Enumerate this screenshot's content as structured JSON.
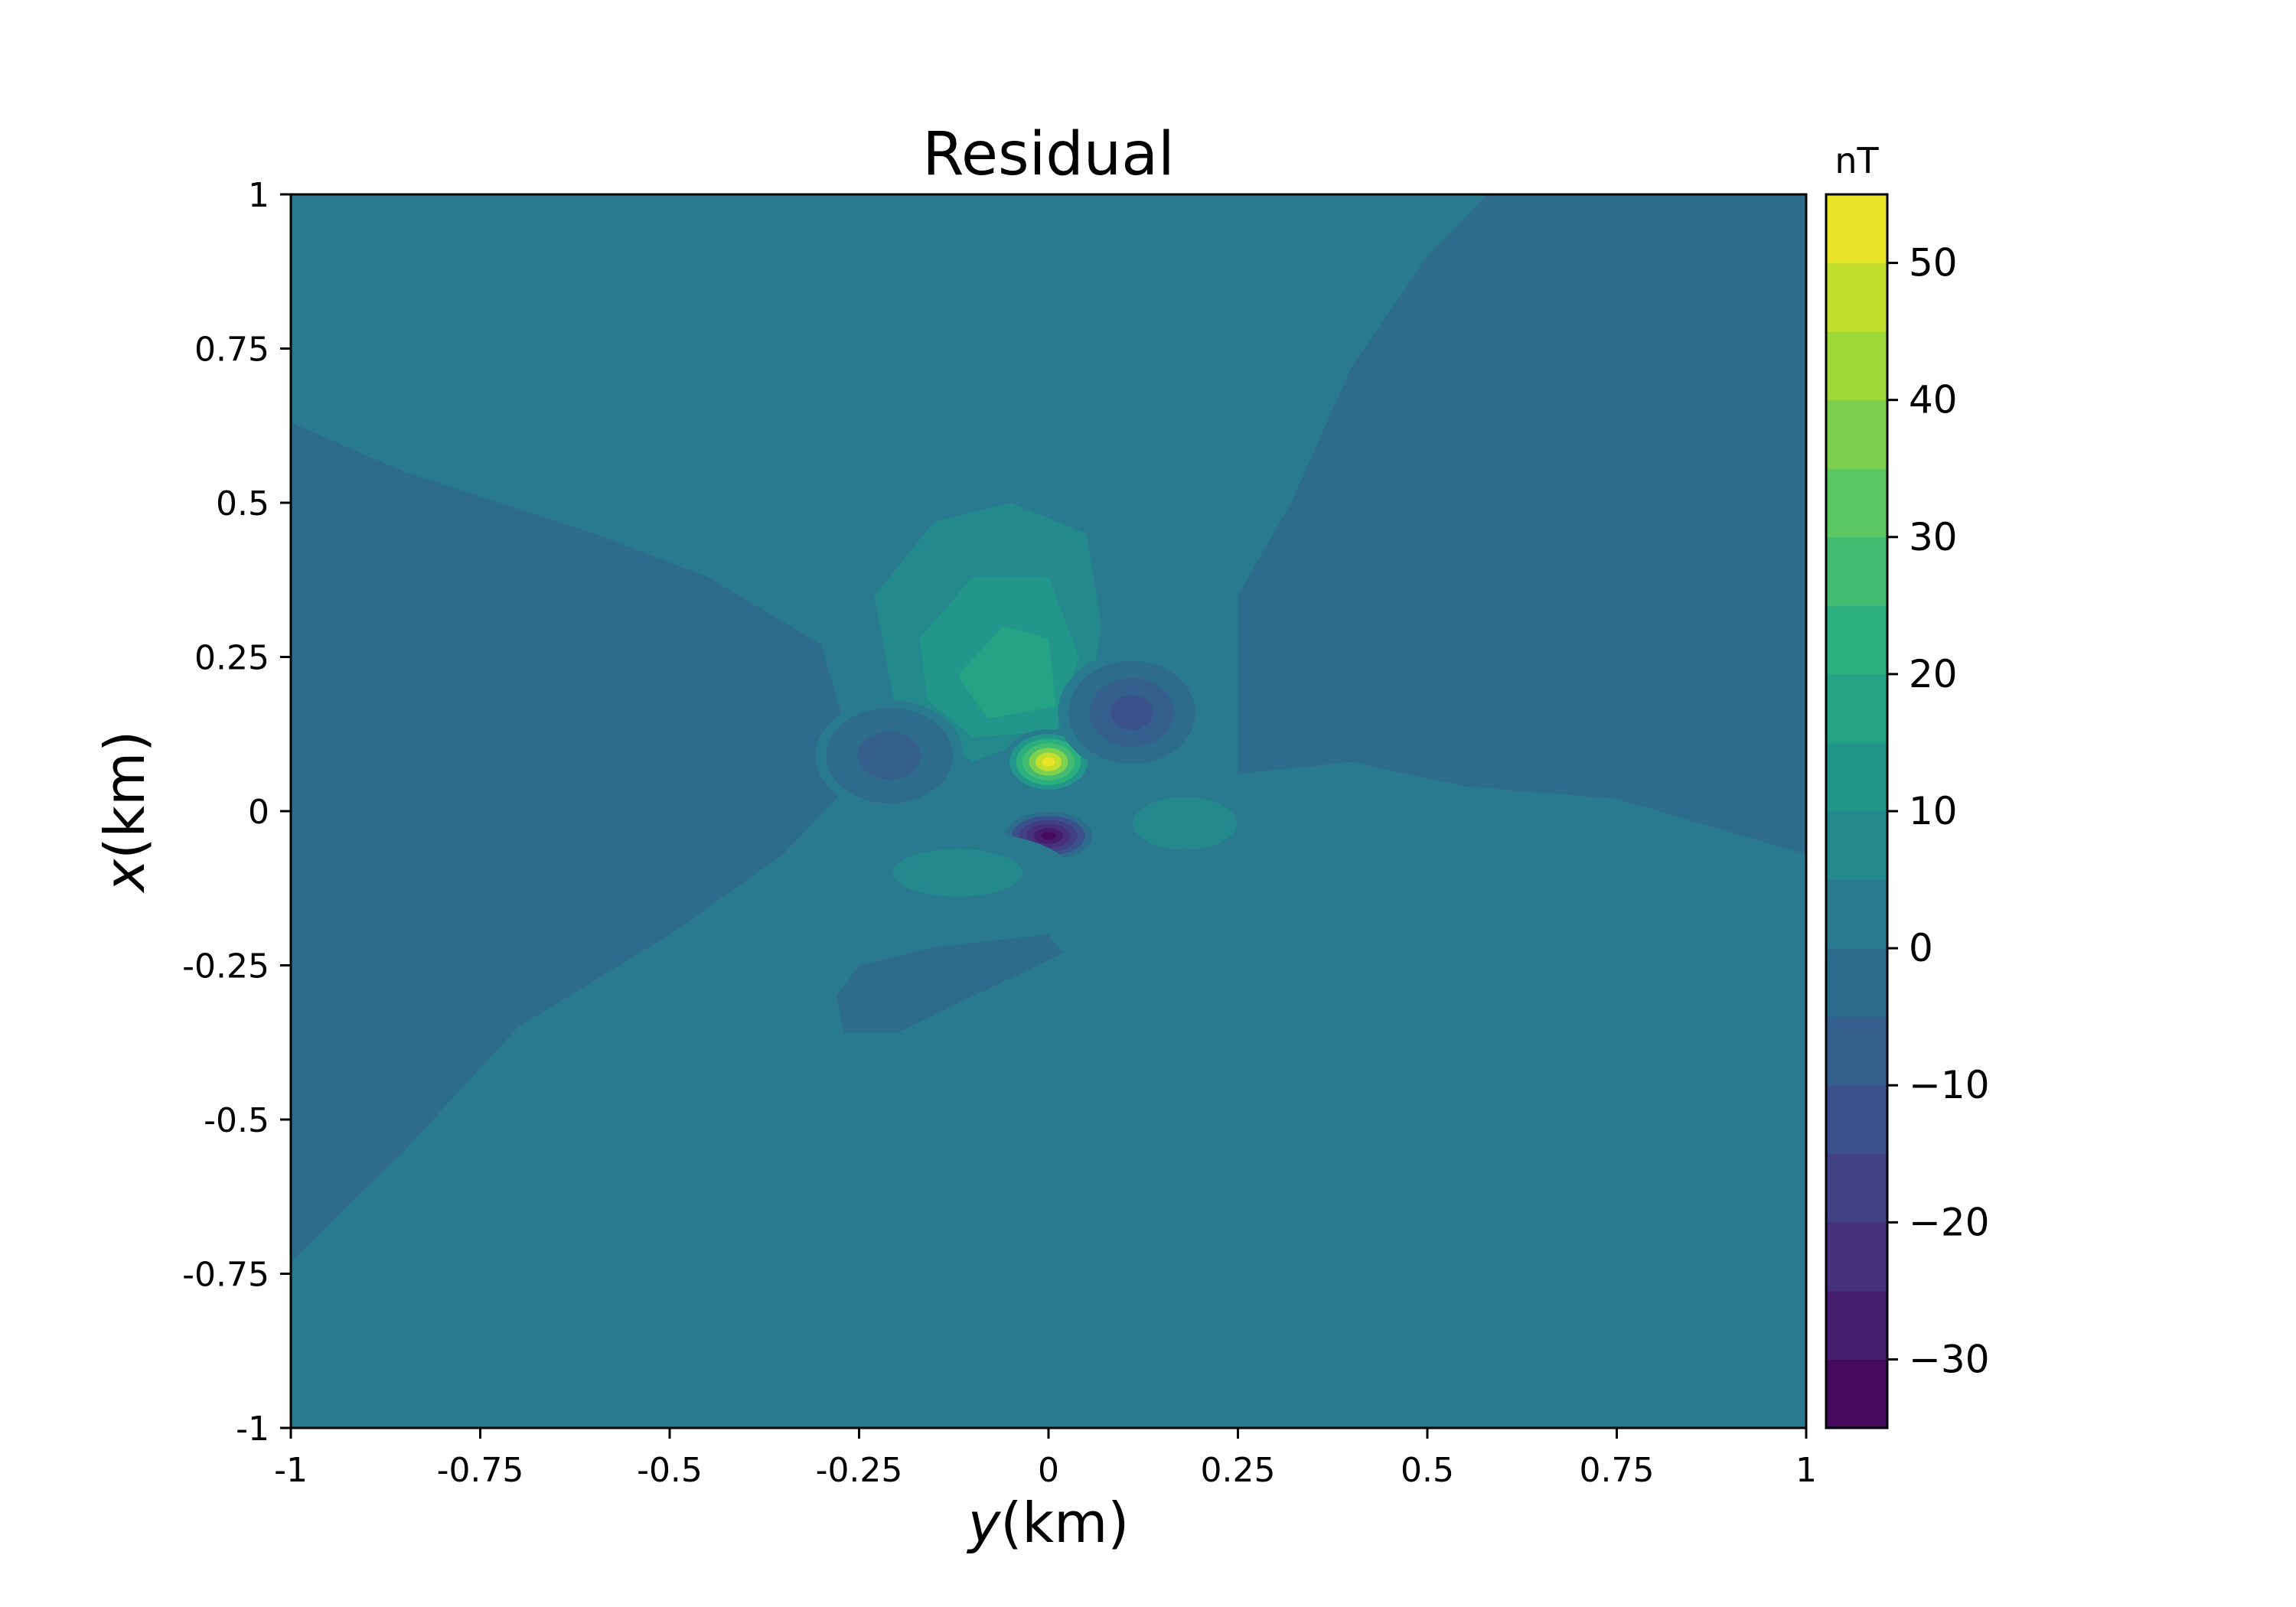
{
  "chart_data": {
    "type": "heatmap",
    "subtype": "filled-contour",
    "title": "Residual",
    "xlabel": {
      "italic": "y",
      "text": "(km)"
    },
    "ylabel": {
      "italic": "x",
      "text": "(km)"
    },
    "xlim": [
      -1,
      1
    ],
    "ylim": [
      -1,
      1
    ],
    "xticks": [
      -1,
      -0.75,
      -0.5,
      -0.25,
      0,
      0.25,
      0.5,
      0.75,
      1
    ],
    "xtick_labels": [
      "-1",
      "-0.75",
      "-0.5",
      "-0.25",
      "0",
      "0.25",
      "0.5",
      "0.75",
      "1"
    ],
    "yticks": [
      1,
      0.75,
      0.5,
      0.25,
      0,
      -0.25,
      -0.5,
      -0.75,
      -1
    ],
    "ytick_labels": [
      "1",
      "0.75",
      "0.5",
      "0.25",
      "0",
      "-0.25",
      "-0.5",
      "-0.75",
      "-1"
    ],
    "grid": false,
    "colormap": "viridis",
    "colorbar": {
      "unit_label": "nT",
      "range": [
        -35,
        55
      ],
      "levels": [
        -35,
        -30,
        -25,
        -20,
        -15,
        -10,
        -5,
        0,
        5,
        10,
        15,
        20,
        25,
        30,
        35,
        40,
        45,
        50,
        55
      ],
      "ticks": [
        50,
        40,
        30,
        20,
        10,
        0,
        -10,
        -20,
        -30
      ],
      "tick_labels": [
        "50",
        "40",
        "30",
        "20",
        "10",
        "0",
        "−10",
        "−20",
        "−30"
      ]
    },
    "background_value": 2,
    "regions": [
      {
        "name": "upper-left lobe",
        "value": -3,
        "polygon": [
          [
            -1,
            0.63
          ],
          [
            -0.85,
            0.55
          ],
          [
            -0.6,
            0.45
          ],
          [
            -0.45,
            0.38
          ],
          [
            -0.3,
            0.27
          ],
          [
            -0.25,
            0.06
          ],
          [
            -0.35,
            -0.07
          ],
          [
            -0.5,
            -0.2
          ],
          [
            -0.7,
            -0.35
          ],
          [
            -0.85,
            -0.55
          ],
          [
            -1,
            -0.73
          ]
        ]
      },
      {
        "name": "upper-right lobe",
        "value": -3,
        "polygon": [
          [
            1,
            1
          ],
          [
            0.58,
            1
          ],
          [
            0.5,
            0.9
          ],
          [
            0.4,
            0.72
          ],
          [
            0.32,
            0.5
          ],
          [
            0.25,
            0.35
          ],
          [
            0.25,
            0.06
          ],
          [
            0.4,
            0.08
          ],
          [
            0.55,
            0.04
          ],
          [
            0.75,
            0.02
          ],
          [
            1,
            -0.07
          ]
        ]
      },
      {
        "name": "lower-left patch",
        "value": -3,
        "polygon": [
          [
            -0.28,
            -0.3
          ],
          [
            -0.25,
            -0.25
          ],
          [
            -0.15,
            -0.22
          ],
          [
            0,
            -0.2
          ],
          [
            0.02,
            -0.23
          ],
          [
            -0.1,
            -0.3
          ],
          [
            -0.2,
            -0.36
          ],
          [
            -0.27,
            -0.36
          ]
        ]
      },
      {
        "name": "north positive halo",
        "value": 7,
        "polygon": [
          [
            -0.23,
            0.35
          ],
          [
            -0.15,
            0.47
          ],
          [
            -0.05,
            0.5
          ],
          [
            0.05,
            0.45
          ],
          [
            0.07,
            0.3
          ],
          [
            0.05,
            0.15
          ],
          [
            -0.1,
            0.08
          ],
          [
            -0.2,
            0.15
          ]
        ]
      },
      {
        "name": "north positive",
        "value": 13,
        "polygon": [
          [
            -0.17,
            0.28
          ],
          [
            -0.1,
            0.38
          ],
          [
            0,
            0.38
          ],
          [
            0.04,
            0.25
          ],
          [
            0.01,
            0.13
          ],
          [
            -0.1,
            0.12
          ],
          [
            -0.16,
            0.18
          ]
        ]
      },
      {
        "name": "north positive core",
        "value": 18,
        "polygon": [
          [
            -0.12,
            0.22
          ],
          [
            -0.06,
            0.3
          ],
          [
            0,
            0.28
          ],
          [
            0.01,
            0.17
          ],
          [
            -0.08,
            0.15
          ]
        ]
      },
      {
        "name": "central peak",
        "value": 53,
        "center": [
          0,
          0.08
        ],
        "spread": [
          0.04,
          0.035
        ]
      },
      {
        "name": "central trough",
        "value": -32,
        "center": [
          0,
          -0.04
        ],
        "spread": [
          0.045,
          0.03
        ]
      },
      {
        "name": "west negative",
        "value": -10,
        "center": [
          -0.21,
          0.09
        ],
        "spread": [
          0.065,
          0.06
        ]
      },
      {
        "name": "east negative",
        "value": -15,
        "center": [
          0.11,
          0.16
        ],
        "spread": [
          0.065,
          0.065
        ]
      },
      {
        "name": "south-east positive",
        "value": 8,
        "center": [
          0.18,
          -0.02
        ],
        "spread": [
          0.08,
          0.05
        ]
      },
      {
        "name": "south-west positive",
        "value": 8,
        "center": [
          -0.12,
          -0.1
        ],
        "spread": [
          0.1,
          0.045
        ]
      }
    ]
  }
}
